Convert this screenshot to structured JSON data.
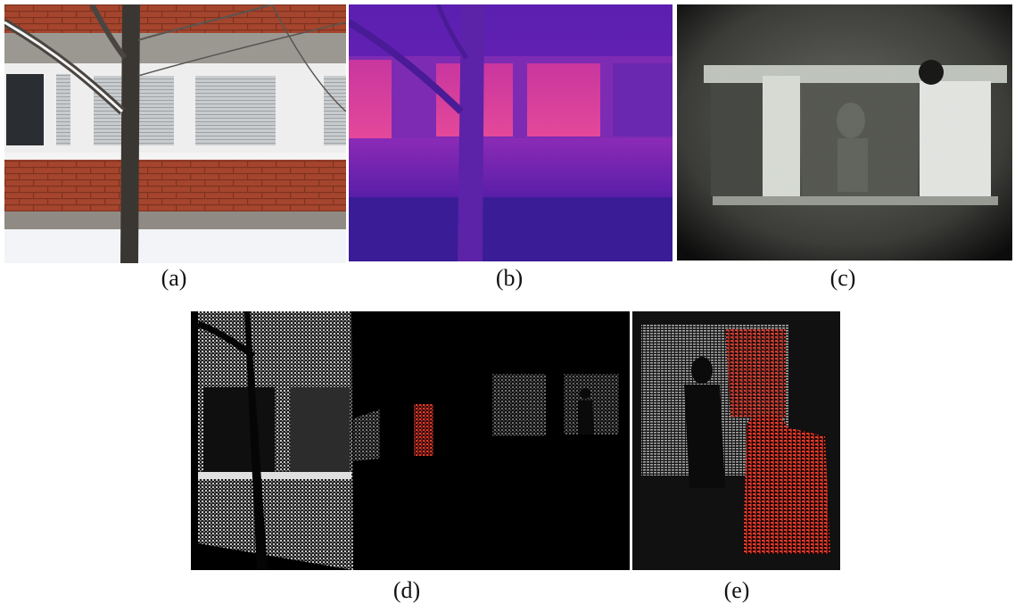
{
  "figure": {
    "panels": [
      {
        "id": "a",
        "caption": "(a)",
        "modality": "visible-color-photo",
        "subject": "brick building facade with windows behind a snow-covered tree"
      },
      {
        "id": "b",
        "caption": "(b)",
        "modality": "thermal-infrared",
        "subject": "same facade in thermal false-color"
      },
      {
        "id": "c",
        "caption": "(c)",
        "modality": "near-infrared-night-vision",
        "subject": "window with person visible in grainy grayscale"
      },
      {
        "id": "d",
        "caption": "(d)",
        "modality": "lidar-point-cloud",
        "subject": "facade point cloud with person highlighted in red"
      },
      {
        "id": "e",
        "caption": "(e)",
        "modality": "lidar-point-cloud-closeup",
        "subject": "close view of person points highlighted in red"
      }
    ],
    "colors": {
      "brick": "#a8442c",
      "thermal_high": "#e0409a",
      "thermal_low": "#3b1ca0",
      "nir_bright": "#e8ece6",
      "point_highlight": "#e23a2a",
      "point_gray": "#b8b8b8"
    }
  }
}
